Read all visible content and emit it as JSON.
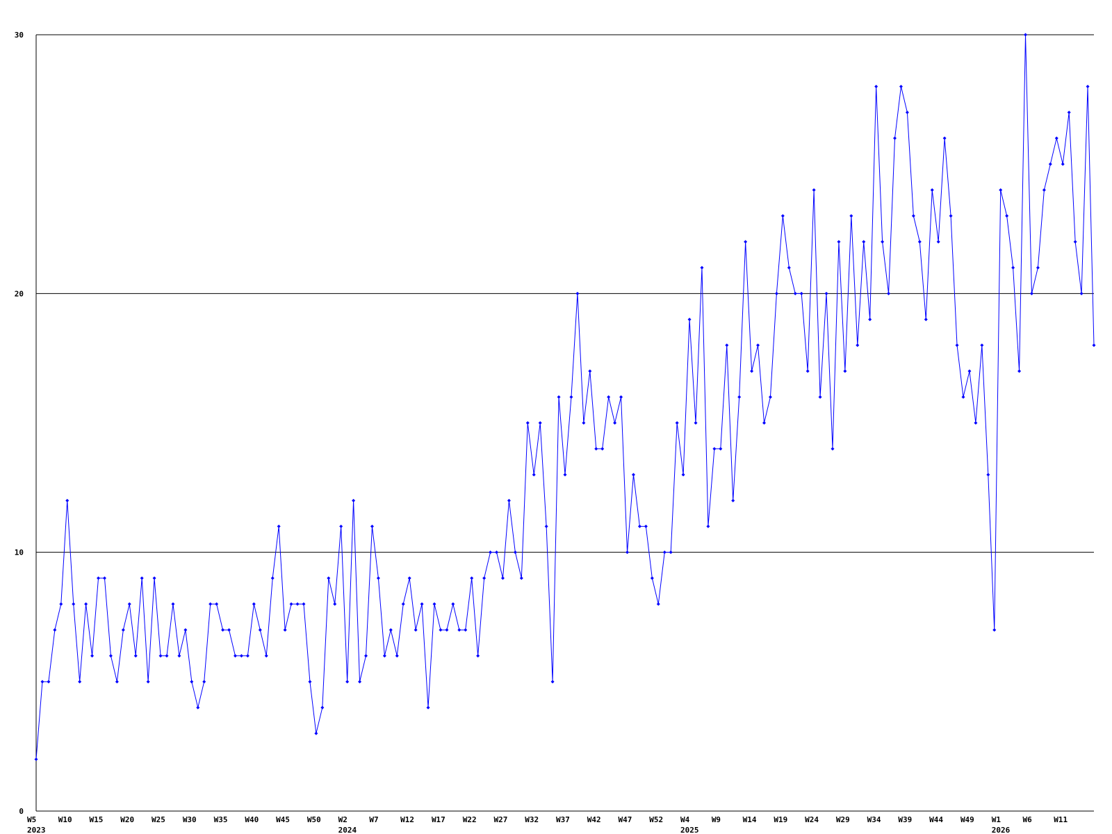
{
  "chart_data": {
    "type": "line",
    "categories": [
      "W5",
      null,
      null,
      null,
      null,
      "W10",
      null,
      null,
      null,
      null,
      "W15",
      null,
      null,
      null,
      null,
      "W20",
      null,
      null,
      null,
      null,
      "W25",
      null,
      null,
      null,
      null,
      "W30",
      null,
      null,
      null,
      null,
      "W35",
      null,
      null,
      null,
      null,
      "W40",
      null,
      null,
      null,
      null,
      "W45",
      null,
      null,
      null,
      null,
      "W50",
      null,
      null,
      null,
      null,
      "W2",
      null,
      null,
      null,
      null,
      "W7",
      null,
      null,
      null,
      null,
      "W12",
      null,
      null,
      null,
      null,
      "W17",
      null,
      null,
      null,
      null,
      "W22",
      null,
      null,
      null,
      null,
      "W27",
      null,
      null,
      null,
      null,
      "W32",
      null,
      null,
      null,
      null,
      "W37",
      null,
      null,
      null,
      null,
      "W42",
      null,
      null,
      null,
      null,
      "W47",
      null,
      null,
      null,
      null,
      "W52",
      null,
      null,
      null,
      null,
      "W4",
      null,
      null,
      null,
      null,
      "W9",
      null,
      null,
      null,
      null,
      "W14",
      null,
      null,
      null,
      null,
      "W19",
      null,
      null,
      null,
      null,
      "W24",
      null,
      null,
      null,
      null,
      "W29",
      null,
      null,
      null,
      null,
      "W34",
      null,
      null,
      null,
      null,
      "W39",
      null,
      null,
      null,
      null,
      "W44",
      null,
      null,
      null,
      null,
      "W49",
      null,
      null,
      null,
      null,
      "W1",
      null,
      null,
      null,
      null,
      "W6",
      null,
      null,
      null,
      null,
      "W11",
      null,
      null,
      null,
      null,
      null
    ],
    "category_years": [
      "2023",
      null,
      null,
      null,
      null,
      null,
      null,
      null,
      null,
      null,
      null,
      null,
      null,
      null,
      null,
      null,
      null,
      null,
      null,
      null,
      null,
      null,
      null,
      null,
      null,
      null,
      null,
      null,
      null,
      null,
      null,
      null,
      null,
      null,
      null,
      null,
      null,
      null,
      null,
      null,
      null,
      null,
      null,
      null,
      null,
      null,
      null,
      null,
      null,
      null,
      "2024",
      null,
      null,
      null,
      null,
      null,
      null,
      null,
      null,
      null,
      null,
      null,
      null,
      null,
      null,
      null,
      null,
      null,
      null,
      null,
      null,
      null,
      null,
      null,
      null,
      null,
      null,
      null,
      null,
      null,
      null,
      null,
      null,
      null,
      null,
      null,
      null,
      null,
      null,
      null,
      null,
      null,
      null,
      null,
      null,
      null,
      null,
      null,
      null,
      null,
      null,
      null,
      null,
      null,
      null,
      "2025",
      null,
      null,
      null,
      null,
      null,
      null,
      null,
      null,
      null,
      null,
      null,
      null,
      null,
      null,
      null,
      null,
      null,
      null,
      null,
      null,
      null,
      null,
      null,
      null,
      null,
      null,
      null,
      null,
      null,
      null,
      null,
      null,
      null,
      null,
      null,
      null,
      null,
      null,
      null,
      null,
      null,
      null,
      null,
      null,
      null,
      null,
      null,
      null,
      null,
      "2026",
      null,
      null,
      null,
      null,
      null,
      null,
      null,
      null,
      null,
      null,
      null,
      null,
      null,
      null,
      null
    ],
    "values": [
      2,
      5,
      5,
      7,
      8,
      12,
      8,
      5,
      8,
      6,
      9,
      9,
      6,
      5,
      7,
      8,
      6,
      9,
      5,
      9,
      6,
      6,
      8,
      6,
      7,
      5,
      4,
      5,
      8,
      8,
      7,
      7,
      6,
      6,
      6,
      8,
      7,
      6,
      9,
      11,
      7,
      8,
      8,
      8,
      5,
      3,
      4,
      9,
      8,
      11,
      5,
      12,
      5,
      6,
      11,
      9,
      6,
      7,
      6,
      8,
      9,
      7,
      8,
      4,
      8,
      7,
      7,
      8,
      7,
      7,
      9,
      6,
      9,
      10,
      10,
      9,
      12,
      10,
      9,
      15,
      13,
      15,
      11,
      5,
      16,
      13,
      16,
      20,
      15,
      17,
      14,
      14,
      16,
      15,
      16,
      10,
      13,
      11,
      11,
      9,
      8,
      10,
      10,
      15,
      13,
      19,
      15,
      21,
      11,
      14,
      14,
      18,
      12,
      16,
      22,
      17,
      18,
      15,
      16,
      20,
      23,
      21,
      20,
      20,
      17,
      24,
      16,
      20,
      14,
      22,
      17,
      23,
      18,
      22,
      19,
      28,
      22,
      20,
      26,
      28,
      27,
      23,
      22,
      19,
      24,
      22,
      26,
      23,
      18,
      16,
      17,
      15,
      18,
      13,
      7,
      24,
      23,
      21,
      17,
      30,
      20,
      21,
      24,
      25,
      26,
      25,
      27,
      22,
      20,
      28,
      18
    ],
    "color": "#0000ff",
    "ylim": [
      0,
      30
    ],
    "yticks": [
      0,
      10,
      20,
      30
    ],
    "grid": true
  }
}
